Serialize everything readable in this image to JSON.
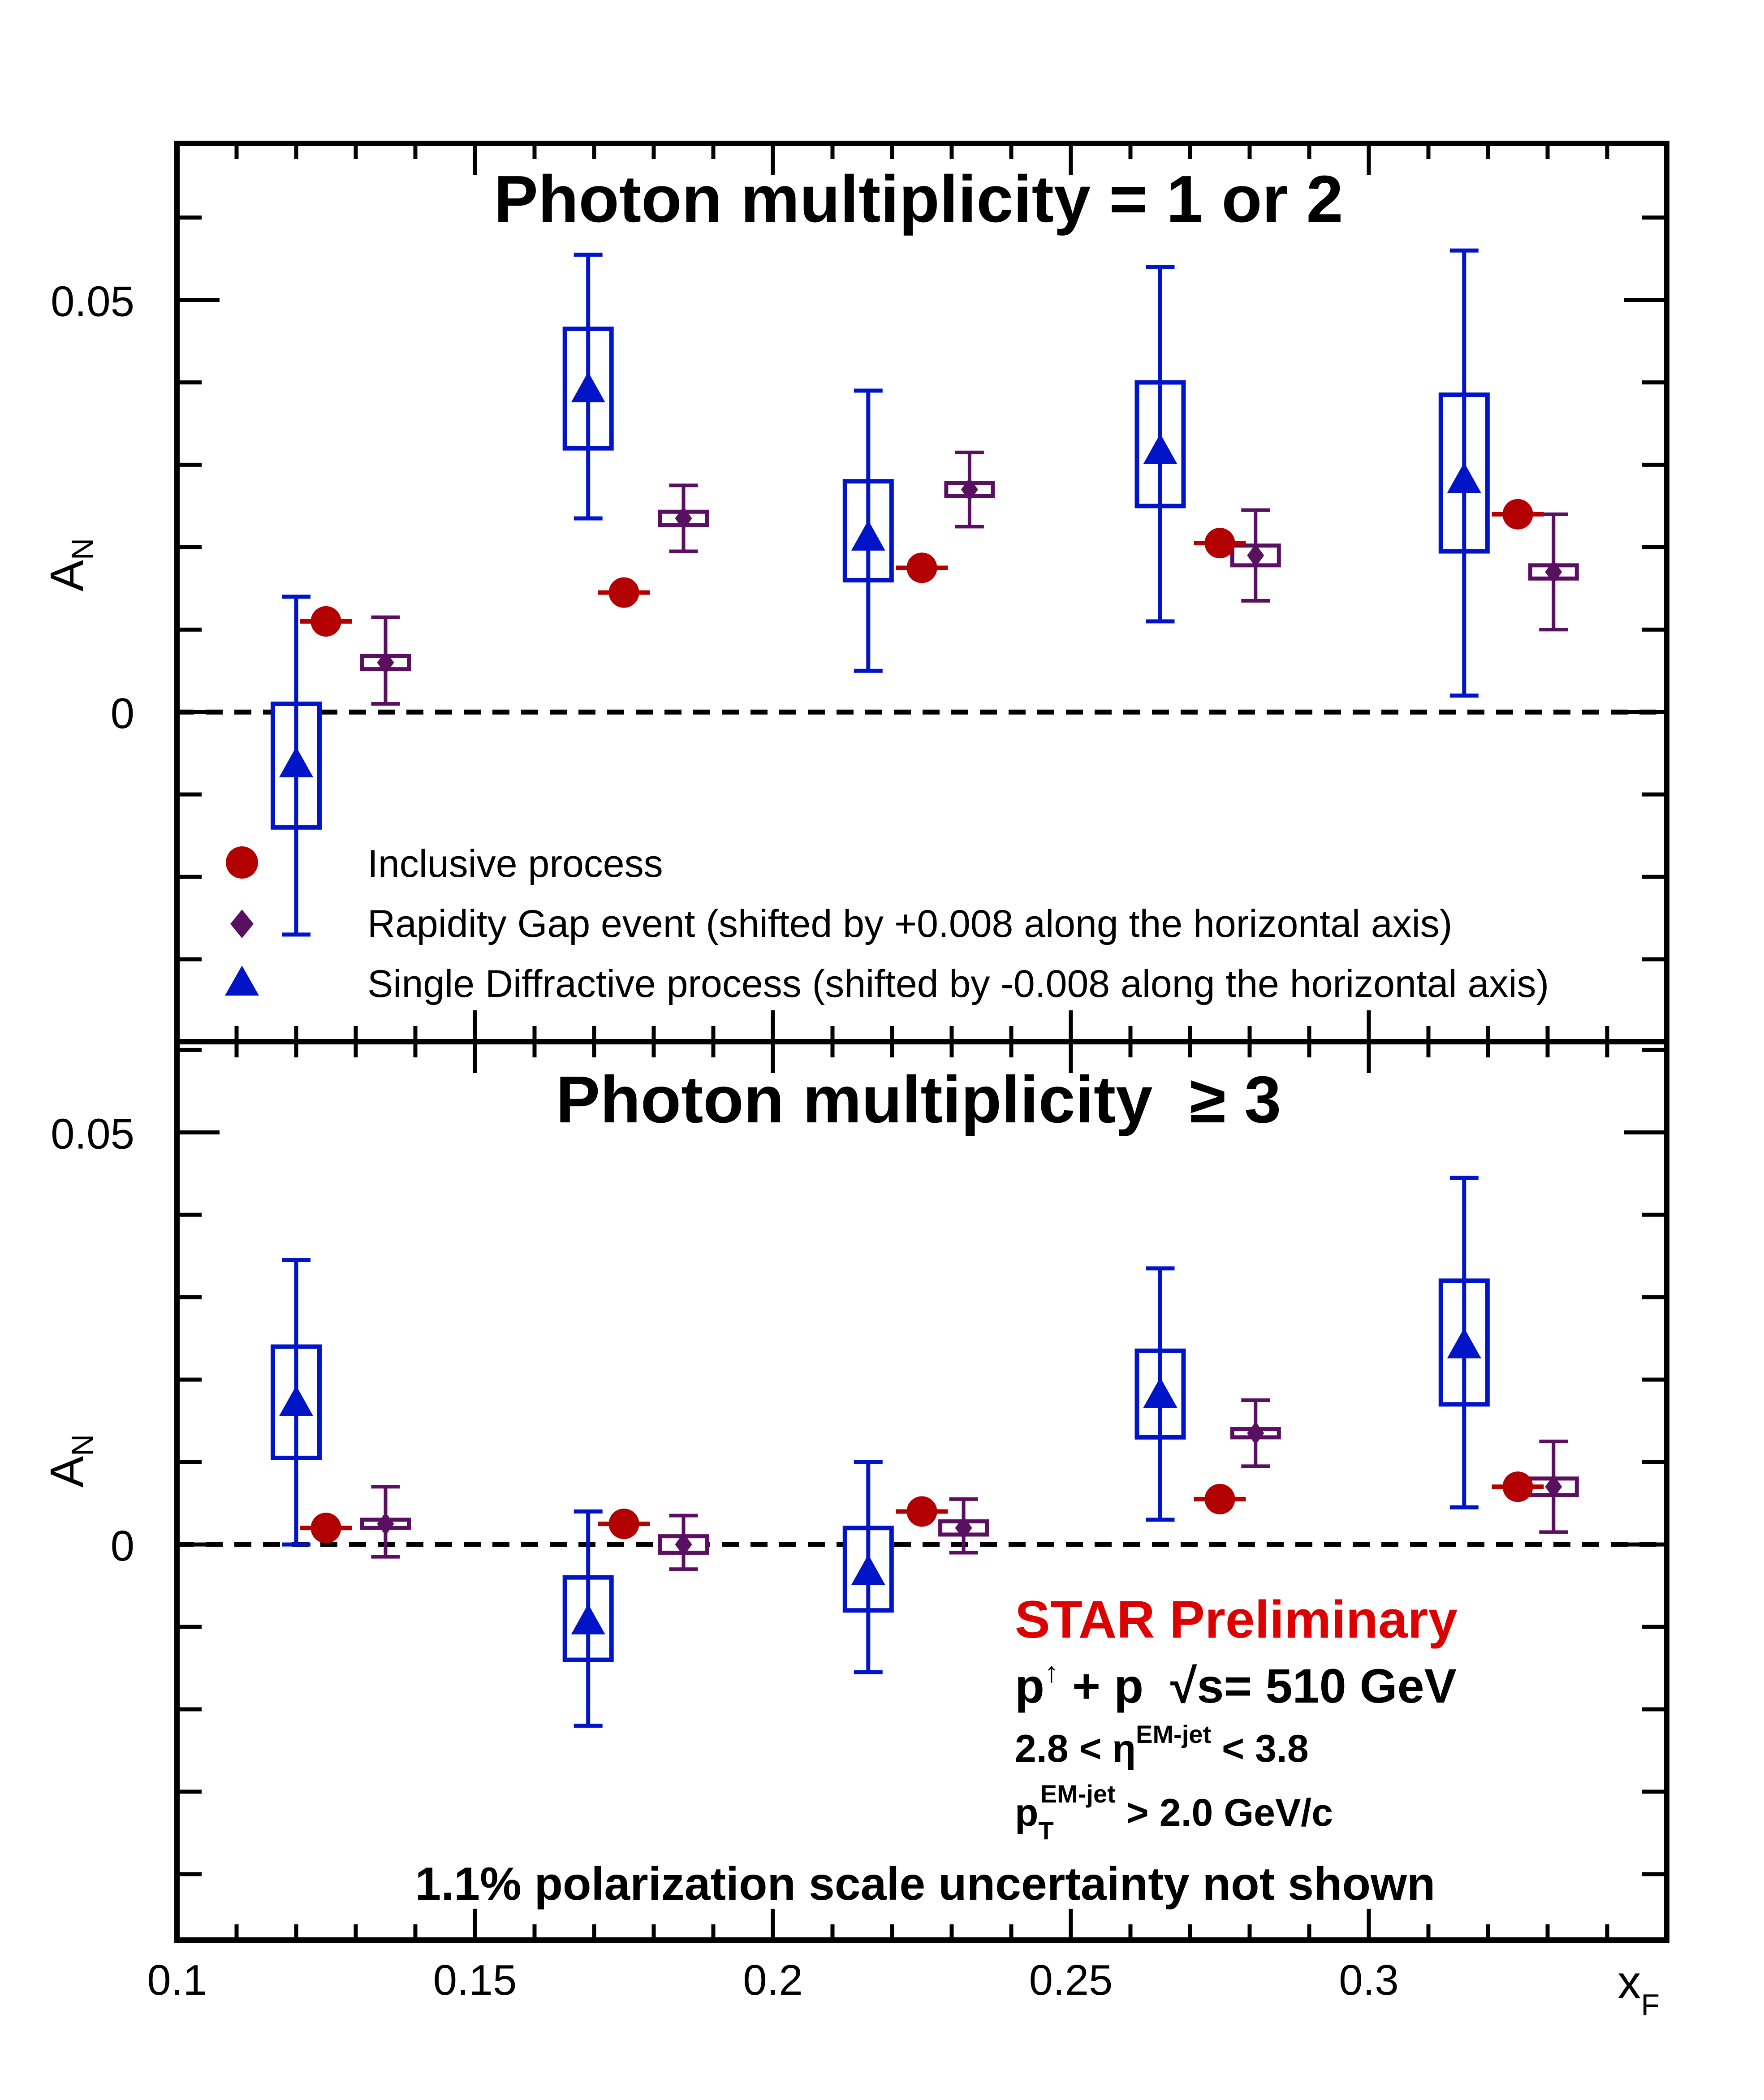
{
  "chart_data": {
    "type": "scatter",
    "xlabel": "x",
    "xlabel_sub": "F",
    "ylabel": "A",
    "ylabel_sub": "N",
    "xlim": [
      0.1,
      0.35
    ],
    "x_ticks": [
      "0.1",
      "0.15",
      "0.2",
      "0.25",
      "0.3"
    ],
    "x_tick_values": [
      0.1,
      0.15,
      0.2,
      0.25,
      0.3
    ],
    "colors": {
      "inclusive": "#b30000",
      "rapidity_gap": "#5a1060",
      "single_diffractive": "#0014c8",
      "preliminary": "#dd0000"
    },
    "legend": [
      {
        "symbol": "circle",
        "label": "Inclusive process"
      },
      {
        "symbol": "diamond",
        "label": "Rapidity Gap event (shifted by +0.008 along the horizontal axis)"
      },
      {
        "symbol": "triangle",
        "label": "Single Diffractive process (shifted by -0.008 along the horizontal axis)"
      }
    ],
    "panels": [
      {
        "title": "Photon multiplicity = 1 or 2",
        "ylim": [
          -0.04,
          0.069
        ],
        "y_ticks": [
          "0.05",
          "0"
        ],
        "y_tick_values": [
          0.05,
          0
        ],
        "series": [
          {
            "name": "Inclusive process",
            "x": [
              0.125,
              0.175,
              0.225,
              0.275,
              0.325
            ],
            "y": [
              0.011,
              0.0145,
              0.0175,
              0.0205,
              0.024
            ]
          },
          {
            "name": "Rapidity Gap event (shifted by +0.008 along the horizontal axis)",
            "x": [
              0.135,
              0.185,
              0.233,
              0.281,
              0.331
            ],
            "y": [
              0.006,
              0.0235,
              0.027,
              0.019,
              0.017
            ],
            "stat_low": [
              0.005,
              0.004,
              0.0045,
              0.0055,
              0.007
            ],
            "stat_high": [
              0.0055,
              0.004,
              0.0045,
              0.0055,
              0.007
            ],
            "sys": [
              0.0008,
              0.0008,
              0.0008,
              0.0012,
              0.0008
            ]
          },
          {
            "name": "Single Diffractive process (shifted by -0.008 along the horizontal axis)",
            "x": [
              0.12,
              0.169,
              0.216,
              0.265,
              0.316
            ],
            "y": [
              -0.0065,
              0.039,
              0.021,
              0.0315,
              0.028
            ],
            "stat_low": [
              0.0205,
              0.0155,
              0.016,
              0.0205,
              0.026
            ],
            "stat_high": [
              0.0205,
              0.0165,
              0.018,
              0.0225,
              0.028
            ],
            "sys_low": [
              0.0075,
              0.007,
              0.005,
              0.0065,
              0.0085
            ],
            "sys_high": [
              0.0075,
              0.0075,
              0.007,
              0.0085,
              0.0105
            ]
          }
        ]
      },
      {
        "title": "Photon multiplicity  ≥ 3",
        "ylim": [
          -0.048,
          0.061
        ],
        "y_ticks": [
          "0.05",
          "0"
        ],
        "y_tick_values": [
          0.05,
          0
        ],
        "series": [
          {
            "name": "Inclusive process",
            "x": [
              0.125,
              0.175,
              0.225,
              0.275,
              0.325
            ],
            "y": [
              0.002,
              0.0025,
              0.004,
              0.0055,
              0.007
            ]
          },
          {
            "name": "Rapidity Gap event (shifted by +0.008 along the horizontal axis)",
            "x": [
              0.135,
              0.185,
              0.232,
              0.281,
              0.331
            ],
            "y": [
              0.0025,
              0.0,
              0.002,
              0.0135,
              0.007
            ],
            "stat_low": [
              0.004,
              0.003,
              0.003,
              0.004,
              0.0055
            ],
            "stat_high": [
              0.0045,
              0.0035,
              0.0035,
              0.004,
              0.0055
            ],
            "sys": [
              0.0005,
              0.001,
              0.0008,
              0.0005,
              0.001
            ]
          },
          {
            "name": "Single Diffractive process (shifted by -0.008 along the horizontal axis)",
            "x": [
              0.12,
              0.169,
              0.216,
              0.265,
              0.316
            ],
            "y": [
              0.017,
              -0.0095,
              -0.0035,
              0.018,
              0.024
            ],
            "stat_low": [
              0.017,
              0.0125,
              0.012,
              0.015,
              0.0195
            ],
            "stat_high": [
              0.0175,
              0.0135,
              0.0135,
              0.0155,
              0.0205
            ],
            "sys_low": [
              0.0065,
              0.0045,
              0.0045,
              0.005,
              0.007
            ],
            "sys_high": [
              0.007,
              0.0055,
              0.0055,
              0.0055,
              0.008
            ]
          }
        ]
      }
    ],
    "annotations": {
      "preliminary": "STAR Preliminary",
      "collision_p": "p",
      "collision_arrow": "↑",
      "collision_rest": " + p  √s= 510 GeV",
      "eta_pre": "2.8 < η",
      "eta_sup": "EM-jet",
      "eta_post": " < 3.8",
      "pt_p": "p",
      "pt_sub": "T",
      "pt_sup": "EM-jet",
      "pt_post": " > 2.0 GeV/c",
      "polarization": "1.1% polarization scale uncertainty not shown"
    }
  }
}
